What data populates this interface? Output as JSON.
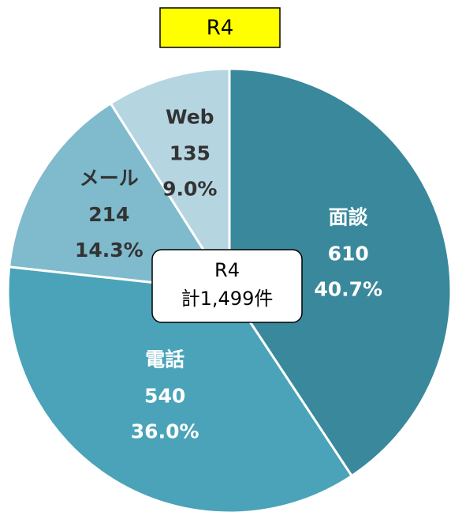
{
  "chart_data": {
    "type": "pie",
    "title": "R4",
    "categories": [
      "面談",
      "電話",
      "メール",
      "Web"
    ],
    "values": [
      610,
      540,
      214,
      135
    ],
    "percent_labels": [
      "40.7%",
      "36.0%",
      "14.3%",
      "9.0%"
    ],
    "colors": [
      "#3a889c",
      "#4aa3b9",
      "#7fbacd",
      "#b5d5e1"
    ],
    "label_colors": [
      "#ffffff",
      "#ffffff",
      "#333333",
      "#333333"
    ],
    "center_label": [
      "R4",
      "計1,499件"
    ]
  }
}
